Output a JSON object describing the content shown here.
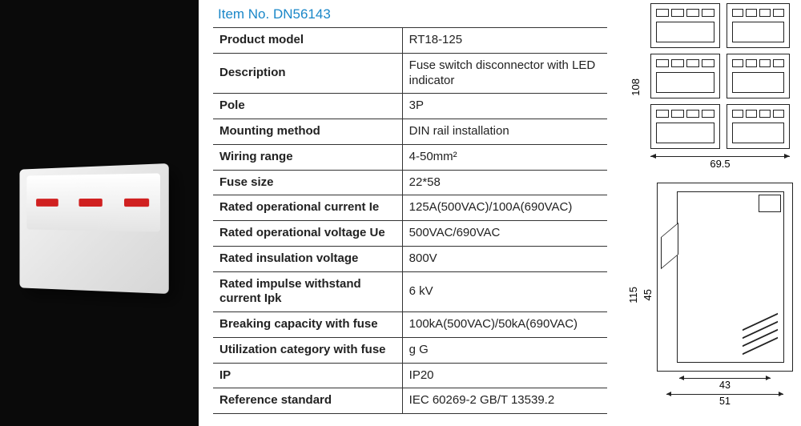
{
  "item_no_label": "Item No. DN56143",
  "specs": {
    "rows": [
      {
        "label": "Product model",
        "value": "RT18-125"
      },
      {
        "label": "Description",
        "value": "Fuse switch disconnector with LED indicator"
      },
      {
        "label": "Pole",
        "value": "3P"
      },
      {
        "label": "Mounting method",
        "value": "DIN rail installation"
      },
      {
        "label": "Wiring range",
        "value": "4-50mm²"
      },
      {
        "label": "Fuse size",
        "value": "22*58"
      },
      {
        "label": "Rated operational current Ie",
        "value": "125A(500VAC)/100A(690VAC)"
      },
      {
        "label": "Rated operational voltage Ue",
        "value": "500VAC/690VAC"
      },
      {
        "label": "Rated insulation voltage",
        "value": "800V"
      },
      {
        "label": "Rated impulse withstand current Ipk",
        "value": "6 kV"
      },
      {
        "label": "Breaking capacity with fuse",
        "value": "100kA(500VAC)/50kA(690VAC)"
      },
      {
        "label": "Utilization category with fuse",
        "value": "g G"
      },
      {
        "label": "IP",
        "value": "IP20"
      },
      {
        "label": "Reference standard",
        "value": "IEC 60269-2   GB/T 13539.2"
      }
    ]
  },
  "drawings": {
    "top_view": {
      "height_mm": "108",
      "width_mm": "69.5"
    },
    "side_view": {
      "overall_height_mm": "115",
      "inner_height_mm": "45",
      "base_width_mm": "51",
      "body_width_mm": "43"
    }
  },
  "colors": {
    "accent": "#1a87c8",
    "line": "#222222",
    "led": "#d02020",
    "photo_bg": "#0a0a0a"
  }
}
